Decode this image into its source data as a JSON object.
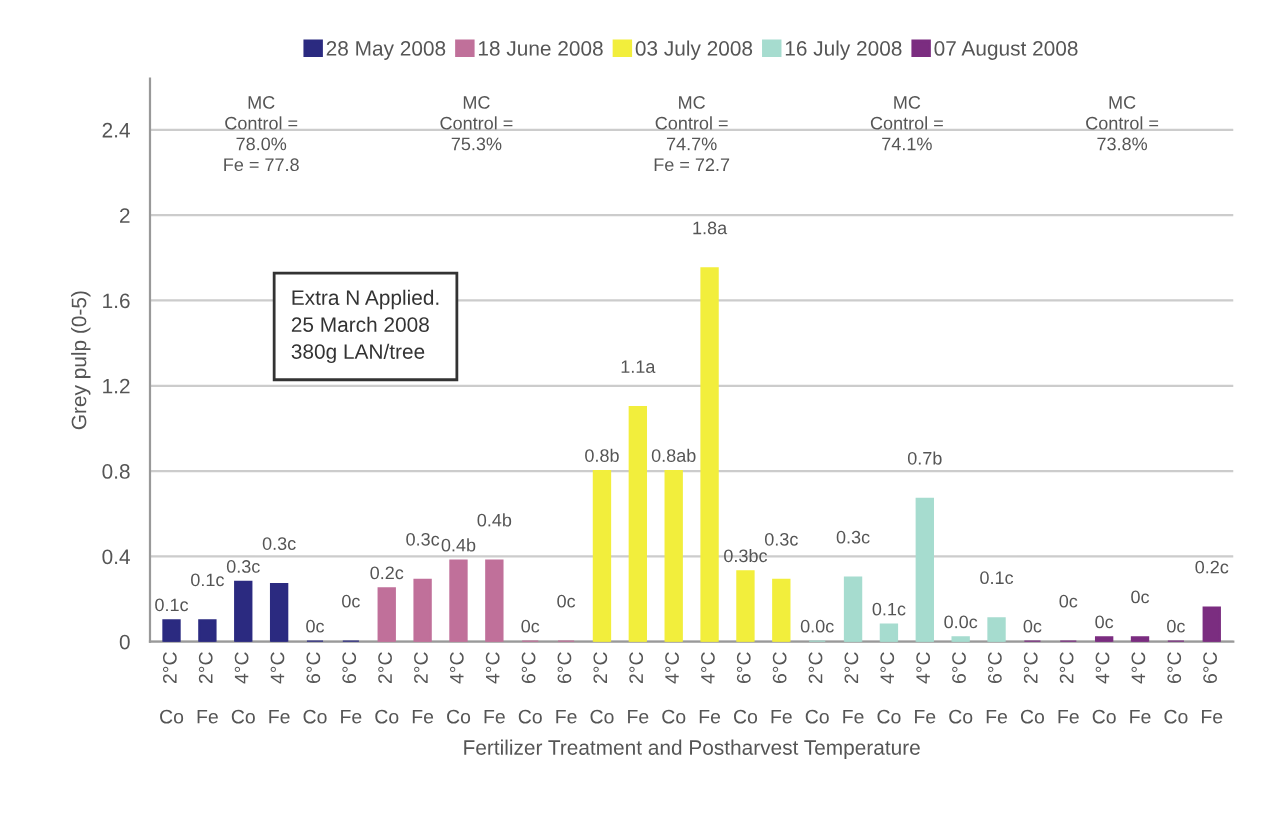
{
  "chart_data": {
    "type": "bar",
    "xlabel": "Fertilizer Treatment and Postharvest Temperature",
    "ylabel": "Grey pulp (0-5)",
    "categories": [
      "2°C Co",
      "2°C Fe",
      "4°C Co",
      "4°C Fe",
      "6°C Co",
      "6°C Fe",
      "2°C Co",
      "2°C Fe",
      "4°C Co",
      "4°C Fe",
      "6°C Co",
      "6°C Fe",
      "2°C Co",
      "2°C Fe",
      "4°C Co",
      "4°C Fe",
      "6°C Co",
      "6°C Fe",
      "2°C Co",
      "2°C Fe",
      "4°C Co",
      "4°C Fe",
      "6°C Co",
      "6°C Fe",
      "2°C Co",
      "2°C Fe",
      "4°C Co",
      "4°C Fe",
      "6°C Co",
      "6°C Fe"
    ],
    "series": [
      {
        "name": "28 May 2008",
        "color": "#2b2a80",
        "values": [
          0.1,
          0.1,
          0.28,
          0.27,
          0,
          0,
          null,
          null,
          null,
          null,
          null,
          null,
          null,
          null,
          null,
          null,
          null,
          null,
          null,
          null,
          null,
          null,
          null,
          null,
          null,
          null,
          null,
          null,
          null,
          null
        ],
        "value_labels": [
          "0.1c",
          "0.1c",
          "0.3c",
          "0.3c",
          "0c",
          "0c",
          null,
          null,
          null,
          null,
          null,
          null,
          null,
          null,
          null,
          null,
          null,
          null,
          null,
          null,
          null,
          null,
          null,
          null,
          null,
          null,
          null,
          null,
          null,
          null
        ]
      },
      {
        "name": "18 June 2008",
        "color": "#c0709a",
        "values": [
          null,
          null,
          null,
          null,
          null,
          null,
          0.25,
          0.29,
          0.38,
          0.38,
          0,
          0,
          null,
          null,
          null,
          null,
          null,
          null,
          null,
          null,
          null,
          null,
          null,
          null,
          null,
          null,
          null,
          null,
          null,
          null
        ],
        "value_labels": [
          null,
          null,
          null,
          null,
          null,
          null,
          "0.2c",
          "0.3c",
          "0.4b",
          "0.4b",
          "0c",
          "0c",
          null,
          null,
          null,
          null,
          null,
          null,
          null,
          null,
          null,
          null,
          null,
          null,
          null,
          null,
          null,
          null,
          null,
          null
        ]
      },
      {
        "name": "03 July 2008",
        "color": "#f2ee3c",
        "values": [
          null,
          null,
          null,
          null,
          null,
          null,
          null,
          null,
          null,
          null,
          null,
          null,
          0.8,
          1.1,
          0.8,
          1.75,
          0.33,
          0.29,
          null,
          null,
          null,
          null,
          null,
          null,
          null,
          null,
          null,
          null,
          null,
          null
        ],
        "value_labels": [
          null,
          null,
          null,
          null,
          null,
          null,
          null,
          null,
          null,
          null,
          null,
          null,
          "0.8b",
          "1.1a",
          "0.8ab",
          "1.8a",
          "0.3bc",
          "0.3c",
          null,
          null,
          null,
          null,
          null,
          null,
          null,
          null,
          null,
          null,
          null,
          null
        ]
      },
      {
        "name": "16 July 2008",
        "color": "#a6dccf",
        "values": [
          null,
          null,
          null,
          null,
          null,
          null,
          null,
          null,
          null,
          null,
          null,
          null,
          null,
          null,
          null,
          null,
          null,
          null,
          0,
          0.3,
          0.08,
          0.67,
          0.02,
          0.11,
          null,
          null,
          null,
          null,
          null,
          null
        ],
        "value_labels": [
          null,
          null,
          null,
          null,
          null,
          null,
          null,
          null,
          null,
          null,
          null,
          null,
          null,
          null,
          null,
          null,
          null,
          null,
          "0.0c",
          "0.3c",
          "0.1c",
          "0.7b",
          "0.0c",
          "0.1c",
          null,
          null,
          null,
          null,
          null,
          null
        ]
      },
      {
        "name": "07 August 2008",
        "color": "#7b2d80",
        "values": [
          null,
          null,
          null,
          null,
          null,
          null,
          null,
          null,
          null,
          null,
          null,
          null,
          null,
          null,
          null,
          null,
          null,
          null,
          null,
          null,
          null,
          null,
          null,
          null,
          0,
          0,
          0.02,
          0.02,
          0,
          0.16
        ],
        "value_labels": [
          null,
          null,
          null,
          null,
          null,
          null,
          null,
          null,
          null,
          null,
          null,
          null,
          null,
          null,
          null,
          null,
          null,
          null,
          null,
          null,
          null,
          null,
          null,
          null,
          "0c",
          "0c",
          "0c",
          "0c",
          "0c",
          "0.2c"
        ]
      }
    ],
    "ylim": [
      0,
      2.64
    ],
    "yticks": [
      0,
      0.4,
      0.8,
      1.2,
      1.6,
      2,
      2.4
    ],
    "grid": "y",
    "legend": "top",
    "annotations": [
      "MC\nControl =\n78.0%\nFe = 77.8",
      "MC\nControl =\n75.3%",
      "MC\nControl =\n74.7%\nFe = 72.7",
      "MC\nControl =\n74.1%",
      "MC\nControl =\n73.8%",
      "Extra N Applied.\n25 March 2008\n380g LAN/tree"
    ]
  }
}
